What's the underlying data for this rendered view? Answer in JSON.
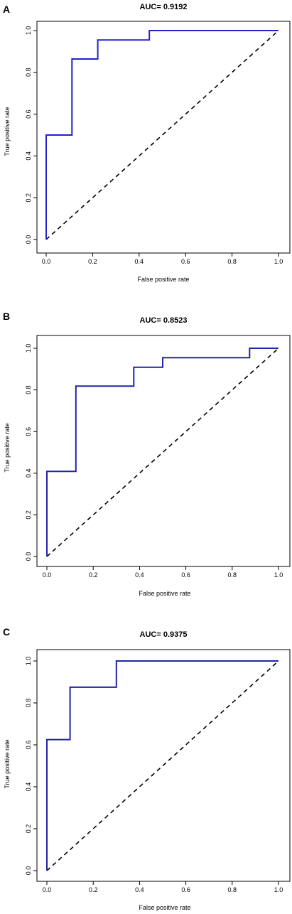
{
  "chart_data": [
    {
      "type": "line",
      "panel": "A",
      "title": "AUC= 0.9192",
      "xlabel": "False positive rate",
      "ylabel": "True positive rate",
      "xlim": [
        0,
        1
      ],
      "ylim": [
        0,
        1
      ],
      "xticks": [
        "0.0",
        "0.2",
        "0.4",
        "0.6",
        "0.8",
        "1.0"
      ],
      "yticks": [
        "0.0",
        "0.2",
        "0.4",
        "0.6",
        "0.8",
        "1.0"
      ],
      "series": [
        {
          "color": "#2222cc",
          "x": [
            0,
            0,
            0.111,
            0.111,
            0.222,
            0.222,
            0.444,
            0.444,
            1.0
          ],
          "y": [
            0,
            0.5,
            0.5,
            0.864,
            0.864,
            0.955,
            0.955,
            1.0,
            1.0
          ]
        }
      ],
      "reference_line": {
        "x": [
          0,
          1
        ],
        "y": [
          0,
          1
        ],
        "style": "dashed",
        "color": "#000000"
      },
      "grid": false
    },
    {
      "type": "line",
      "panel": "B",
      "title": "AUC= 0.8523",
      "xlabel": "False positive rate",
      "ylabel": "True positive rate",
      "xlim": [
        0,
        1
      ],
      "ylim": [
        0,
        1
      ],
      "xticks": [
        "0.0",
        "0.2",
        "0.4",
        "0.6",
        "0.8",
        "1.0"
      ],
      "yticks": [
        "0.0",
        "0.2",
        "0.4",
        "0.6",
        "0.8",
        "1.0"
      ],
      "series": [
        {
          "color": "#2222aa",
          "x": [
            0,
            0,
            0.125,
            0.125,
            0.375,
            0.375,
            0.5,
            0.5,
            0.875,
            0.875,
            1.0
          ],
          "y": [
            0,
            0.409,
            0.409,
            0.818,
            0.818,
            0.909,
            0.909,
            0.955,
            0.955,
            1.0,
            1.0
          ]
        }
      ],
      "reference_line": {
        "x": [
          0,
          1
        ],
        "y": [
          0,
          1
        ],
        "style": "dashed",
        "color": "#000000"
      },
      "grid": false
    },
    {
      "type": "line",
      "panel": "C",
      "title": "AUC= 0.9375",
      "xlabel": "False positive rate",
      "ylabel": "True positive rate",
      "xlim": [
        0,
        1
      ],
      "ylim": [
        0,
        1
      ],
      "xticks": [
        "0.0",
        "0.2",
        "0.4",
        "0.6",
        "0.8",
        "1.0"
      ],
      "yticks": [
        "0.0",
        "0.2",
        "0.4",
        "0.6",
        "0.8",
        "1.0"
      ],
      "series": [
        {
          "color": "#2222aa",
          "x": [
            0,
            0,
            0.1,
            0.1,
            0.3,
            0.3,
            1.0
          ],
          "y": [
            0,
            0.625,
            0.625,
            0.875,
            0.875,
            1.0,
            1.0
          ]
        }
      ],
      "reference_line": {
        "x": [
          0,
          1
        ],
        "y": [
          0,
          1
        ],
        "style": "dashed",
        "color": "#000000"
      },
      "grid": false
    }
  ]
}
